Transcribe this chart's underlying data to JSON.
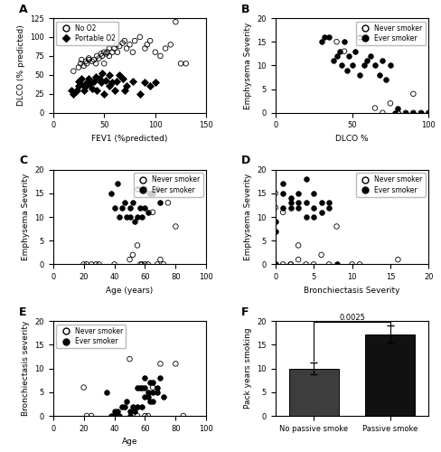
{
  "panel_A": {
    "no_o2": {
      "x": [
        20,
        25,
        27,
        28,
        30,
        32,
        33,
        35,
        35,
        38,
        40,
        42,
        43,
        45,
        47,
        48,
        50,
        50,
        52,
        53,
        55,
        55,
        58,
        60,
        62,
        63,
        65,
        68,
        70,
        72,
        75,
        78,
        80,
        85,
        90,
        92,
        95,
        100,
        105,
        110,
        115,
        120,
        125,
        130
      ],
      "y": [
        55,
        60,
        65,
        70,
        62,
        68,
        65,
        70,
        72,
        68,
        70,
        65,
        75,
        72,
        78,
        75,
        80,
        65,
        78,
        80,
        85,
        75,
        80,
        85,
        90,
        80,
        88,
        92,
        95,
        85,
        90,
        80,
        95,
        100,
        85,
        90,
        95,
        80,
        75,
        85,
        90,
        120,
        65,
        65
      ]
    },
    "portable_o2": {
      "x": [
        18,
        20,
        22,
        23,
        25,
        25,
        27,
        28,
        30,
        30,
        32,
        33,
        35,
        36,
        38,
        40,
        42,
        43,
        45,
        47,
        48,
        50,
        52,
        55,
        55,
        58,
        60,
        62,
        65,
        68,
        70,
        72,
        78,
        85,
        90,
        95,
        100
      ],
      "y": [
        30,
        25,
        28,
        30,
        35,
        42,
        38,
        45,
        35,
        30,
        35,
        40,
        45,
        38,
        32,
        42,
        48,
        30,
        45,
        40,
        52,
        25,
        43,
        50,
        35,
        40,
        30,
        42,
        50,
        45,
        30,
        35,
        42,
        25,
        40,
        35,
        40
      ]
    },
    "xlabel": "FEV1 (%predicted)",
    "ylabel": "DLCO (% predicted)",
    "xlim": [
      0,
      150
    ],
    "ylim": [
      0,
      125
    ],
    "xticks": [
      0,
      50,
      100,
      150
    ],
    "yticks": [
      0,
      25,
      50,
      75,
      100,
      125
    ]
  },
  "panel_B": {
    "never_smoker": {
      "x": [
        40,
        45,
        65,
        70,
        75,
        80,
        85,
        90,
        95,
        100,
        90,
        80
      ],
      "y": [
        15,
        13,
        1,
        0,
        2,
        0,
        0,
        0,
        0,
        0,
        4,
        0
      ]
    },
    "ever_smoker": {
      "x": [
        30,
        32,
        35,
        38,
        40,
        42,
        43,
        45,
        47,
        48,
        50,
        52,
        55,
        55,
        58,
        60,
        62,
        65,
        68,
        70,
        72,
        75,
        78,
        80,
        85,
        90,
        95,
        100
      ],
      "y": [
        15,
        16,
        16,
        11,
        12,
        13,
        10,
        15,
        9,
        12,
        10,
        13,
        8,
        16,
        10,
        11,
        12,
        10,
        8,
        11,
        7,
        10,
        0,
        1,
        0,
        0,
        0,
        0
      ]
    },
    "xlabel": "DLCO %",
    "ylabel": "Emphysema Severity",
    "xlim": [
      0,
      100
    ],
    "ylim": [
      0,
      20
    ],
    "xticks": [
      0,
      50,
      100
    ],
    "yticks": [
      0,
      5,
      10,
      15,
      20
    ]
  },
  "panel_C": {
    "never_smoker": {
      "x": [
        20,
        22,
        25,
        28,
        30,
        40,
        50,
        52,
        55,
        57,
        58,
        60,
        62,
        63,
        65,
        68,
        70,
        72,
        75,
        80
      ],
      "y": [
        0,
        0,
        0,
        0,
        0,
        0,
        1,
        2,
        4,
        0,
        0,
        0,
        0,
        15,
        11,
        0,
        1,
        0,
        13,
        8
      ]
    },
    "ever_smoker": {
      "x": [
        38,
        40,
        42,
        43,
        45,
        47,
        48,
        50,
        50,
        52,
        53,
        55,
        55,
        57,
        58,
        60,
        60,
        62,
        63,
        65,
        68,
        70
      ],
      "y": [
        15,
        12,
        17,
        10,
        12,
        13,
        10,
        12,
        10,
        13,
        9,
        16,
        10,
        12,
        10,
        12,
        16,
        11,
        15,
        15,
        16,
        13
      ]
    },
    "xlabel": "Age (years)",
    "ylabel": "Emphysema Severity",
    "xlim": [
      0,
      100
    ],
    "ylim": [
      0,
      20
    ],
    "xticks": [
      0,
      20,
      40,
      60,
      80,
      100
    ],
    "yticks": [
      0,
      5,
      10,
      15,
      20
    ]
  },
  "panel_D": {
    "never_smoker": {
      "x": [
        0,
        0,
        0,
        1,
        1,
        2,
        2,
        3,
        3,
        4,
        5,
        6,
        7,
        8,
        10,
        11,
        16
      ],
      "y": [
        0,
        12,
        15,
        11,
        0,
        0,
        0,
        4,
        1,
        0,
        0,
        2,
        0,
        8,
        0,
        0,
        1
      ]
    },
    "ever_smoker": {
      "x": [
        0,
        0,
        0,
        1,
        1,
        1,
        2,
        2,
        2,
        3,
        3,
        3,
        4,
        4,
        4,
        5,
        5,
        5,
        6,
        6,
        7,
        7,
        8
      ],
      "y": [
        0,
        9,
        7,
        12,
        15,
        17,
        13,
        14,
        12,
        12,
        13,
        15,
        10,
        13,
        18,
        10,
        12,
        15,
        11,
        13,
        12,
        13,
        0
      ]
    },
    "xlabel": "Bronchiectasis Severity",
    "ylabel": "Emphysema Severity",
    "xlim": [
      0,
      20
    ],
    "ylim": [
      0,
      20
    ],
    "xticks": [
      0,
      5,
      10,
      15,
      20
    ],
    "yticks": [
      0,
      5,
      10,
      15,
      20
    ]
  },
  "panel_E": {
    "never_smoker": {
      "x": [
        20,
        22,
        25,
        40,
        42,
        50,
        55,
        60,
        62,
        65,
        70,
        80,
        85
      ],
      "y": [
        6,
        0,
        0,
        0,
        0,
        12,
        0,
        0,
        0,
        6,
        11,
        11,
        0
      ]
    },
    "ever_smoker": {
      "x": [
        35,
        38,
        40,
        40,
        42,
        43,
        45,
        47,
        48,
        50,
        50,
        52,
        53,
        55,
        55,
        57,
        58,
        58,
        60,
        60,
        60,
        62,
        62,
        63,
        63,
        65,
        65,
        65,
        68,
        68,
        70,
        72
      ],
      "y": [
        5,
        0,
        0,
        1,
        1,
        0,
        2,
        2,
        3,
        1,
        0,
        2,
        1,
        6,
        2,
        6,
        6,
        2,
        4,
        6,
        8,
        5,
        4,
        3,
        7,
        5,
        7,
        3,
        6,
        5,
        8,
        4
      ]
    },
    "xlabel": "Age",
    "ylabel": "Bronchiectasis severity",
    "xlim": [
      0,
      100
    ],
    "ylim": [
      0,
      20
    ],
    "xticks": [
      0,
      20,
      40,
      60,
      80,
      100
    ],
    "yticks": [
      0,
      5,
      10,
      15,
      20
    ]
  },
  "panel_F": {
    "categories": [
      "No passive smoke",
      "Passive smoke"
    ],
    "means": [
      10.0,
      17.25
    ],
    "sems": [
      1.3,
      1.8
    ],
    "bar_color_1": "#3d3d3d",
    "bar_color_2": "#111111",
    "ylabel": "Pack years smoking",
    "ylim": [
      0,
      20
    ],
    "yticks": [
      0,
      5,
      10,
      15,
      20
    ],
    "pvalue": "0.0025"
  },
  "marker_size": 16,
  "never_smoker_marker": "o",
  "ever_smoker_marker": "o",
  "no_o2_marker": "o",
  "portable_o2_marker": "D"
}
